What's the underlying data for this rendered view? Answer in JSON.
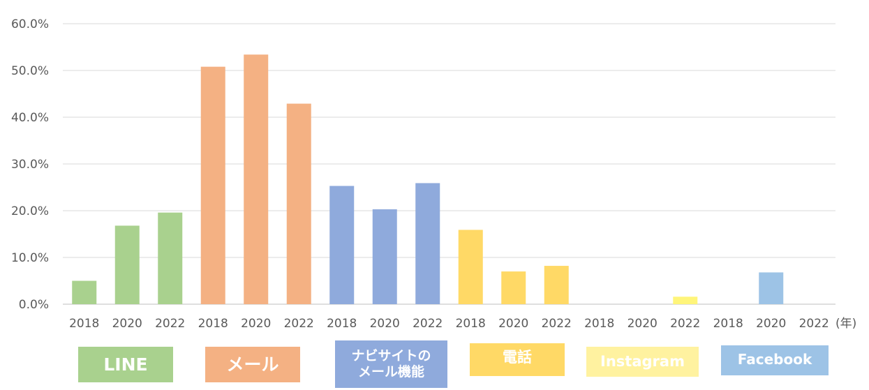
{
  "chart_data": {
    "type": "bar",
    "categories": [
      "2018",
      "2020",
      "2022",
      "2018",
      "2020",
      "2022",
      "2018",
      "2020",
      "2022",
      "2018",
      "2020",
      "2022",
      "2018",
      "2020",
      "2022",
      "2018",
      "2020",
      "2022"
    ],
    "values": [
      5.0,
      16.8,
      19.6,
      50.8,
      53.4,
      42.9,
      25.3,
      20.3,
      25.9,
      15.9,
      7.0,
      8.2,
      0.0,
      0.0,
      1.6,
      0.0,
      6.8,
      0.0
    ],
    "groups": [
      {
        "name": "LINE",
        "color": "#a9d18e"
      },
      {
        "name": "メール",
        "color": "#f4b183"
      },
      {
        "name": "ナビサイトのメール機能",
        "lines": [
          "ナビサイトの",
          "メール機能"
        ],
        "color": "#8faadc"
      },
      {
        "name": "電話",
        "color": "#ffd966"
      },
      {
        "name": "Instagram",
        "color": "#fff2a0"
      },
      {
        "name": "Facebook",
        "color": "#9dc3e6"
      }
    ],
    "bar_colors": [
      "#a9d18e",
      "#a9d18e",
      "#a9d18e",
      "#f4b183",
      "#f4b183",
      "#f4b183",
      "#8faadc",
      "#8faadc",
      "#8faadc",
      "#ffd966",
      "#ffd966",
      "#ffd966",
      "#ffd966",
      "#ffd966",
      "#fff57a",
      "#9dc3e6",
      "#9dc3e6",
      "#9dc3e6"
    ],
    "yticks": [
      "0.0%",
      "10.0%",
      "20.0%",
      "30.0%",
      "40.0%",
      "50.0%",
      "60.0%"
    ],
    "ylim": [
      0,
      60
    ],
    "x_unit": "(年)",
    "grid": true
  }
}
